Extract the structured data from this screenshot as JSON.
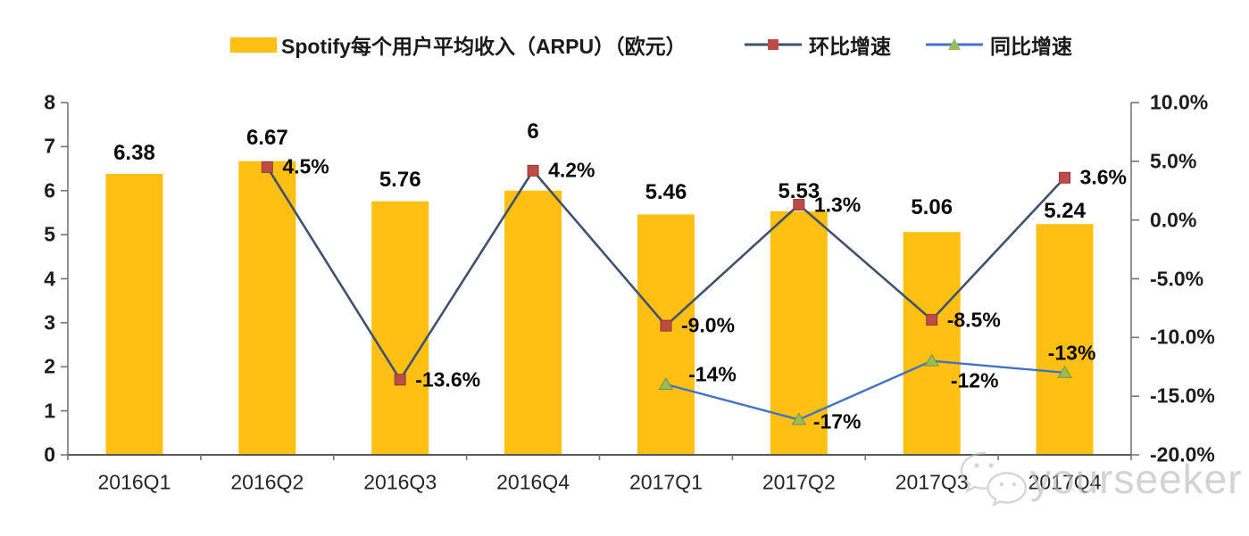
{
  "legend": {
    "bars_label": "Spotify每个用户平均收入（ARPU）（欧元）",
    "qoq_label": "环比增速",
    "yoy_label": "同比增速"
  },
  "watermark": {
    "icon": "wechat-icon",
    "text": "yourseeker"
  },
  "colors": {
    "bar": "#FFC013",
    "qoq_line": "#41526E",
    "qoq_marker": "#BE4B48",
    "qoq_marker_border": "#8E3A37",
    "yoy_line": "#4472C4",
    "yoy_marker": "#9BBB59",
    "yoy_marker_border": "#7A9444",
    "axis": "#767676",
    "text": "#1a1a1a"
  },
  "chart_data": {
    "type": "bar",
    "subtype": "bar+line combo, dual axis",
    "categories": [
      "2016Q1",
      "2016Q2",
      "2016Q3",
      "2016Q4",
      "2017Q1",
      "2017Q2",
      "2017Q3",
      "2017Q4"
    ],
    "series": [
      {
        "name": "Spotify每个用户平均收入（ARPU）（欧元）",
        "type": "bar",
        "axis": "left",
        "values": [
          6.38,
          6.67,
          5.76,
          6,
          5.46,
          5.53,
          5.06,
          5.24
        ],
        "labels": [
          "6.38",
          "6.67",
          "5.76",
          "6",
          "5.46",
          "5.53",
          "5.06",
          "5.24"
        ]
      },
      {
        "name": "环比增速",
        "type": "line",
        "axis": "right",
        "values": [
          null,
          4.5,
          -13.6,
          4.2,
          -9.0,
          1.3,
          -8.5,
          3.6
        ],
        "labels": [
          null,
          "4.5%",
          "-13.6%",
          "4.2%",
          "-9.0%",
          "1.3%",
          "-8.5%",
          "3.6%"
        ]
      },
      {
        "name": "同比增速",
        "type": "line",
        "axis": "right",
        "values": [
          null,
          null,
          null,
          null,
          -14,
          -17,
          -12,
          -13
        ],
        "labels": [
          null,
          null,
          null,
          null,
          "-14%",
          "-17%",
          "-12%",
          "-13%"
        ]
      }
    ],
    "left_axis": {
      "min": 0,
      "max": 8,
      "tick_step": 1,
      "ticks": [
        "0",
        "1",
        "2",
        "3",
        "4",
        "5",
        "6",
        "7",
        "8"
      ]
    },
    "right_axis": {
      "min": -20,
      "max": 10,
      "tick_step": 5,
      "ticks": [
        "10.0%",
        "5.0%",
        "0.0%",
        "-5.0%",
        "-10.0%",
        "-15.0%",
        "-20.0%"
      ]
    },
    "grid": false,
    "legend_position": "top"
  }
}
